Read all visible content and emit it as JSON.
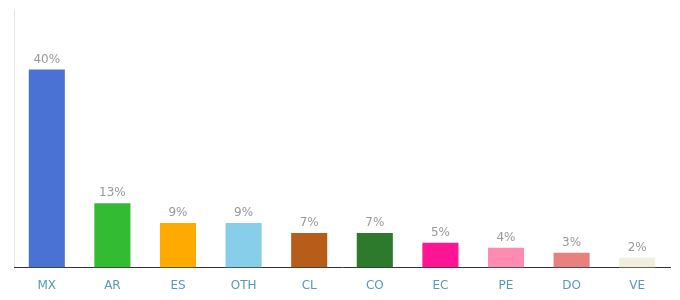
{
  "chart_data": {
    "type": "bar",
    "categories": [
      "MX",
      "AR",
      "ES",
      "OTH",
      "CL",
      "CO",
      "EC",
      "PE",
      "DO",
      "VE"
    ],
    "values": [
      40,
      13,
      9,
      9,
      7,
      7,
      5,
      4,
      3,
      2
    ],
    "value_labels": [
      "40%",
      "13%",
      "9%",
      "9%",
      "7%",
      "7%",
      "5%",
      "4%",
      "3%",
      "2%"
    ],
    "colors": [
      "#4a72d4",
      "#33bb33",
      "#ffaa00",
      "#87ceeb",
      "#b85c1a",
      "#2d7a2d",
      "#ff1493",
      "#ff8cb0",
      "#e88080",
      "#f0eedc"
    ],
    "ylim": [
      0,
      52
    ],
    "data_labels": true,
    "tick_labels": "x",
    "grid": false
  }
}
